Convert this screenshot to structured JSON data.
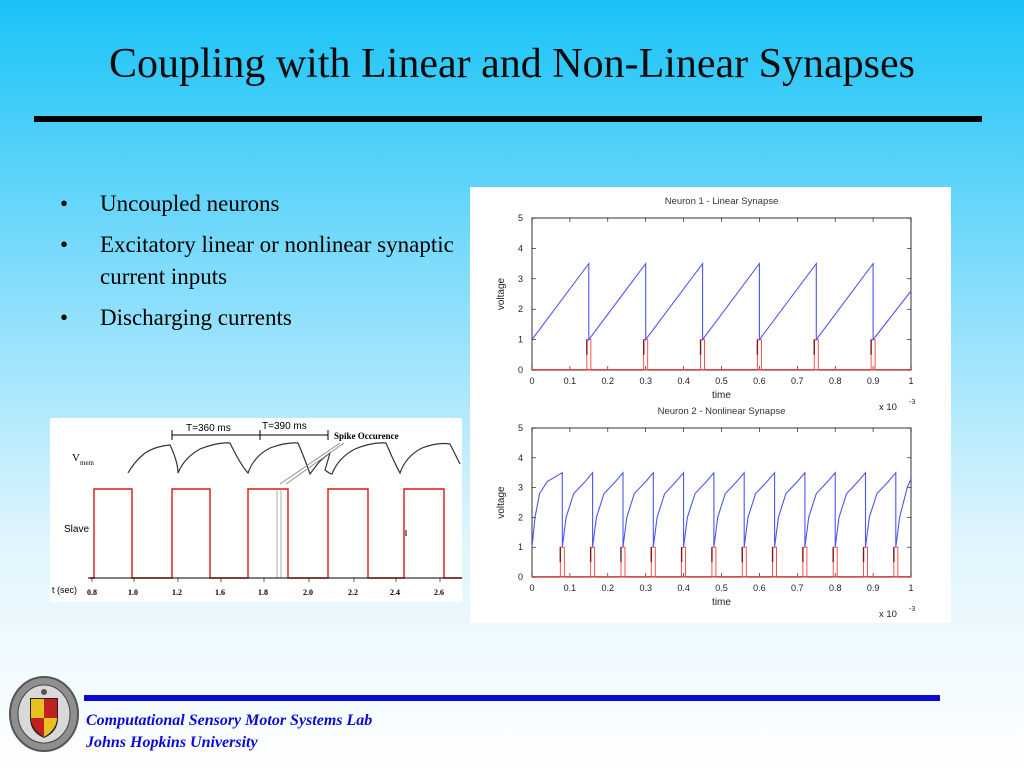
{
  "slide": {
    "title": "Coupling with Linear and Non-Linear Synapses",
    "bullets": [
      "Uncoupled neurons",
      "Excitatory linear or nonlinear synaptic current inputs",
      "Discharging currents"
    ],
    "bullet_char": "•",
    "footer": {
      "line1": "Computational Sensory Motor Systems Lab",
      "line2": "Johns Hopkins University"
    }
  },
  "colors": {
    "title_rule": "#000000",
    "footer_blue": "#0a0ad6",
    "trace_blue": "#4a57f0",
    "spike_red": "#ff3b3b",
    "slave_red": "#e01414"
  },
  "icons": {
    "seal": "university-seal-icon"
  },
  "left_figure": {
    "vmem_label": "V",
    "vmem_sub": "mem",
    "period1": "T=360 ms",
    "period2": "T=390 ms",
    "spike_label": "Spike Occurence",
    "slave_label": "Slave",
    "time_label": "t (sec)",
    "ticks": [
      "0.8",
      "1.0",
      "1.2",
      "1.6",
      "1.8",
      "2.0",
      "2.2",
      "2.4",
      "2.6"
    ]
  },
  "chart_data": [
    {
      "type": "line",
      "title": "Neuron 1 - Linear Synapse",
      "xlabel": "time",
      "ylabel": "voltage",
      "x_multiplier": "x 10",
      "x_multiplier_exp": "-3",
      "xlim": [
        0,
        1
      ],
      "ylim": [
        0,
        5
      ],
      "xticks": [
        "0",
        "0.1",
        "0.2",
        "0.3",
        "0.4",
        "0.5",
        "0.6",
        "0.7",
        "0.8",
        "0.9",
        "1"
      ],
      "yticks": [
        "0",
        "1",
        "2",
        "3",
        "4",
        "5"
      ],
      "series": [
        {
          "x": [
            0,
            0.15,
            0.15,
            0.3,
            0.3,
            0.45,
            0.45,
            0.6,
            0.6,
            0.75,
            0.75,
            0.9,
            0.9,
            1.0
          ],
          "y": [
            1.0,
            3.5,
            1.0,
            3.5,
            1.0,
            3.5,
            1.0,
            3.5,
            1.0,
            3.5,
            1.0,
            3.5,
            1.0,
            2.6
          ]
        }
      ],
      "spikes_x": [
        0.15,
        0.3,
        0.45,
        0.6,
        0.75,
        0.9
      ],
      "spike_height": 1.0
    },
    {
      "type": "line",
      "title": "Neuron 2 - Nonlinear Synapse",
      "xlabel": "time",
      "ylabel": "voltage",
      "x_multiplier": "x 10",
      "x_multiplier_exp": "-3",
      "xlim": [
        0,
        1
      ],
      "ylim": [
        0,
        5
      ],
      "xticks": [
        "0",
        "0.1",
        "0.2",
        "0.3",
        "0.4",
        "0.5",
        "0.6",
        "0.7",
        "0.8",
        "0.9",
        "1"
      ],
      "yticks": [
        "0",
        "1",
        "2",
        "3",
        "4",
        "5"
      ],
      "series": [
        {
          "x": [
            0,
            0.008,
            0.02,
            0.04,
            0.08,
            0.08,
            0.09,
            0.11,
            0.14,
            0.16,
            0.16,
            0.17,
            0.19,
            0.22,
            0.24,
            0.24,
            0.25,
            0.27,
            0.3,
            0.32,
            0.32,
            0.33,
            0.35,
            0.38,
            0.4,
            0.4,
            0.41,
            0.43,
            0.46,
            0.48,
            0.48,
            0.49,
            0.51,
            0.54,
            0.56,
            0.56,
            0.57,
            0.59,
            0.62,
            0.64,
            0.64,
            0.65,
            0.67,
            0.7,
            0.72,
            0.72,
            0.73,
            0.75,
            0.78,
            0.8,
            0.8,
            0.81,
            0.83,
            0.86,
            0.88,
            0.88,
            0.89,
            0.91,
            0.94,
            0.96,
            0.96,
            0.97,
            0.99,
            1.0
          ],
          "y": [
            1.0,
            2.0,
            2.8,
            3.2,
            3.5,
            1.0,
            2.0,
            2.8,
            3.2,
            3.5,
            1.0,
            2.0,
            2.8,
            3.2,
            3.5,
            1.0,
            2.0,
            2.8,
            3.2,
            3.5,
            1.0,
            2.0,
            2.8,
            3.2,
            3.5,
            1.0,
            2.0,
            2.8,
            3.2,
            3.5,
            1.0,
            2.0,
            2.8,
            3.2,
            3.5,
            1.0,
            2.0,
            2.8,
            3.2,
            3.5,
            1.0,
            2.0,
            2.8,
            3.2,
            3.5,
            1.0,
            2.0,
            2.8,
            3.2,
            3.5,
            1.0,
            2.0,
            2.8,
            3.2,
            3.5,
            1.0,
            2.0,
            2.8,
            3.2,
            3.5,
            1.0,
            2.0,
            3.0,
            3.3
          ]
        }
      ],
      "spikes_x": [
        0.08,
        0.16,
        0.24,
        0.32,
        0.4,
        0.48,
        0.56,
        0.64,
        0.72,
        0.8,
        0.88,
        0.96
      ],
      "spike_height": 1.0
    }
  ]
}
